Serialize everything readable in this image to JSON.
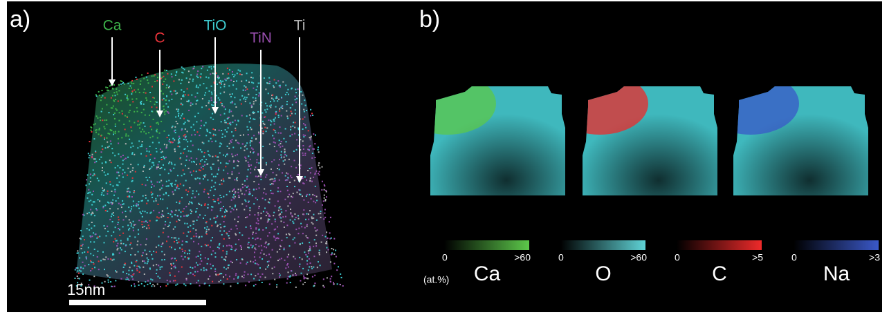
{
  "panel_a": {
    "label": "a)",
    "scale_bar": "15nm",
    "ions": [
      {
        "name": "Ca",
        "color": "#3db24a"
      },
      {
        "name": "C",
        "color": "#e8333a"
      },
      {
        "name": "TiO",
        "color": "#3ecbd0"
      },
      {
        "name": "TiN",
        "color": "#9a4fb0"
      },
      {
        "name": "Ti",
        "color": "#b4b4b4"
      }
    ]
  },
  "panel_b": {
    "label": "b)",
    "unit": "(at.%)",
    "colorbars": [
      {
        "element": "Ca",
        "min": 0,
        "max": ">60",
        "color": "#5cc84a"
      },
      {
        "element": "O",
        "min": 0,
        "max": ">60",
        "color": "#5fd3d6"
      },
      {
        "element": "C",
        "min": 0,
        "max": ">5",
        "color": "#ee2a2a"
      },
      {
        "element": "Na",
        "min": 0,
        "max": ">3",
        "color": "#3a58c8"
      }
    ]
  }
}
